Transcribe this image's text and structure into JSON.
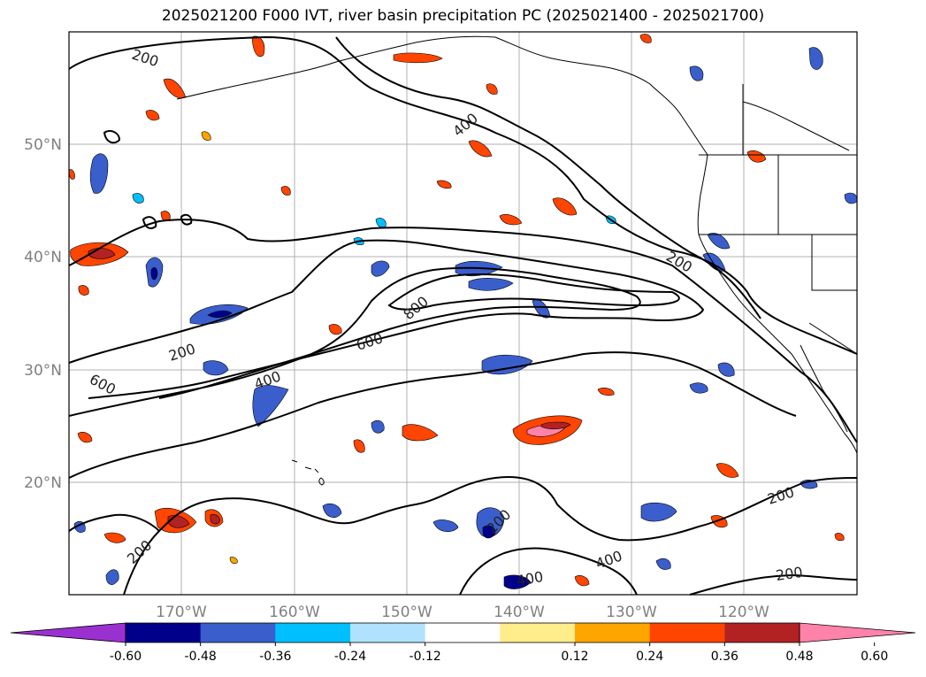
{
  "title": "2025021200 F000 IVT, river basin precipitation PC (2025021400 - 2025021700)",
  "axes": {
    "lat_labels": [
      "50°N",
      "40°N",
      "30°N",
      "20°N"
    ],
    "lon_labels": [
      "170°W",
      "160°W",
      "150°W",
      "140°W",
      "130°W",
      "120°W"
    ],
    "grid": true
  },
  "contour_labels": [
    "200",
    "400",
    "200",
    "200",
    "600",
    "400",
    "600",
    "800",
    "200",
    "200",
    "200",
    "400",
    "400",
    "200"
  ],
  "colorbar": {
    "colors": [
      "#9b30d0",
      "#00008b",
      "#3a5fcd",
      "#00bfff",
      "#b0e2ff",
      "#ffffff",
      "#ffec8b",
      "#ffa500",
      "#ff4500",
      "#b22222",
      "#ff82ab"
    ],
    "tick_labels": [
      "-0.60",
      "-0.48",
      "-0.36",
      "-0.24",
      "-0.12",
      "0.12",
      "0.24",
      "0.36",
      "0.48",
      "0.60"
    ],
    "extend": "both"
  },
  "colors": {
    "grid": "#b0b0b0",
    "contour": "#000000",
    "coast": "#000000"
  }
}
